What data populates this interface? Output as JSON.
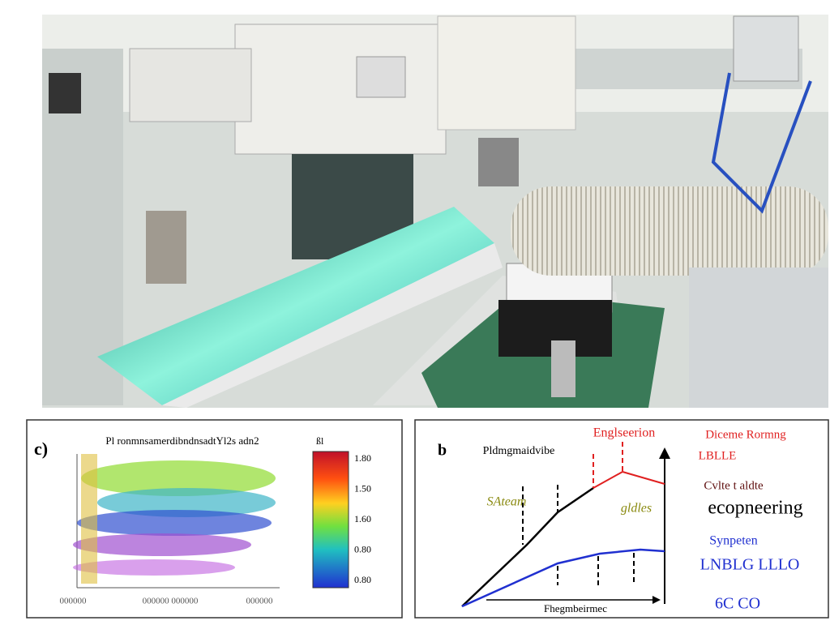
{
  "panel_c": {
    "label": "c)",
    "title": "Pl ronmnsamerdibndnsadtYl2s adn2",
    "colorbar_title": "ßl",
    "colorbar_labels": [
      "1.80",
      "1.50",
      "1.60",
      "0.80",
      "0.80"
    ],
    "x_labels": [
      "000000",
      "000000 000000",
      "000000"
    ]
  },
  "panel_b": {
    "label": "b",
    "curve_label": "Pldmgmaidvibe",
    "red_top": "Englseerion",
    "red_right_1": "Diceme Rormng",
    "red_right_2": "LBLLE",
    "dark_right": "Cvlte t aldte",
    "big_right": "ecopneering",
    "olive_left": "SAteam",
    "olive_mid": "gldles",
    "blue_right_1": "Synpeten",
    "blue_right_2": "LNBLG LLLO",
    "blue_right_3": "6C CO",
    "x_label": "Fhegmbeirmec"
  }
}
